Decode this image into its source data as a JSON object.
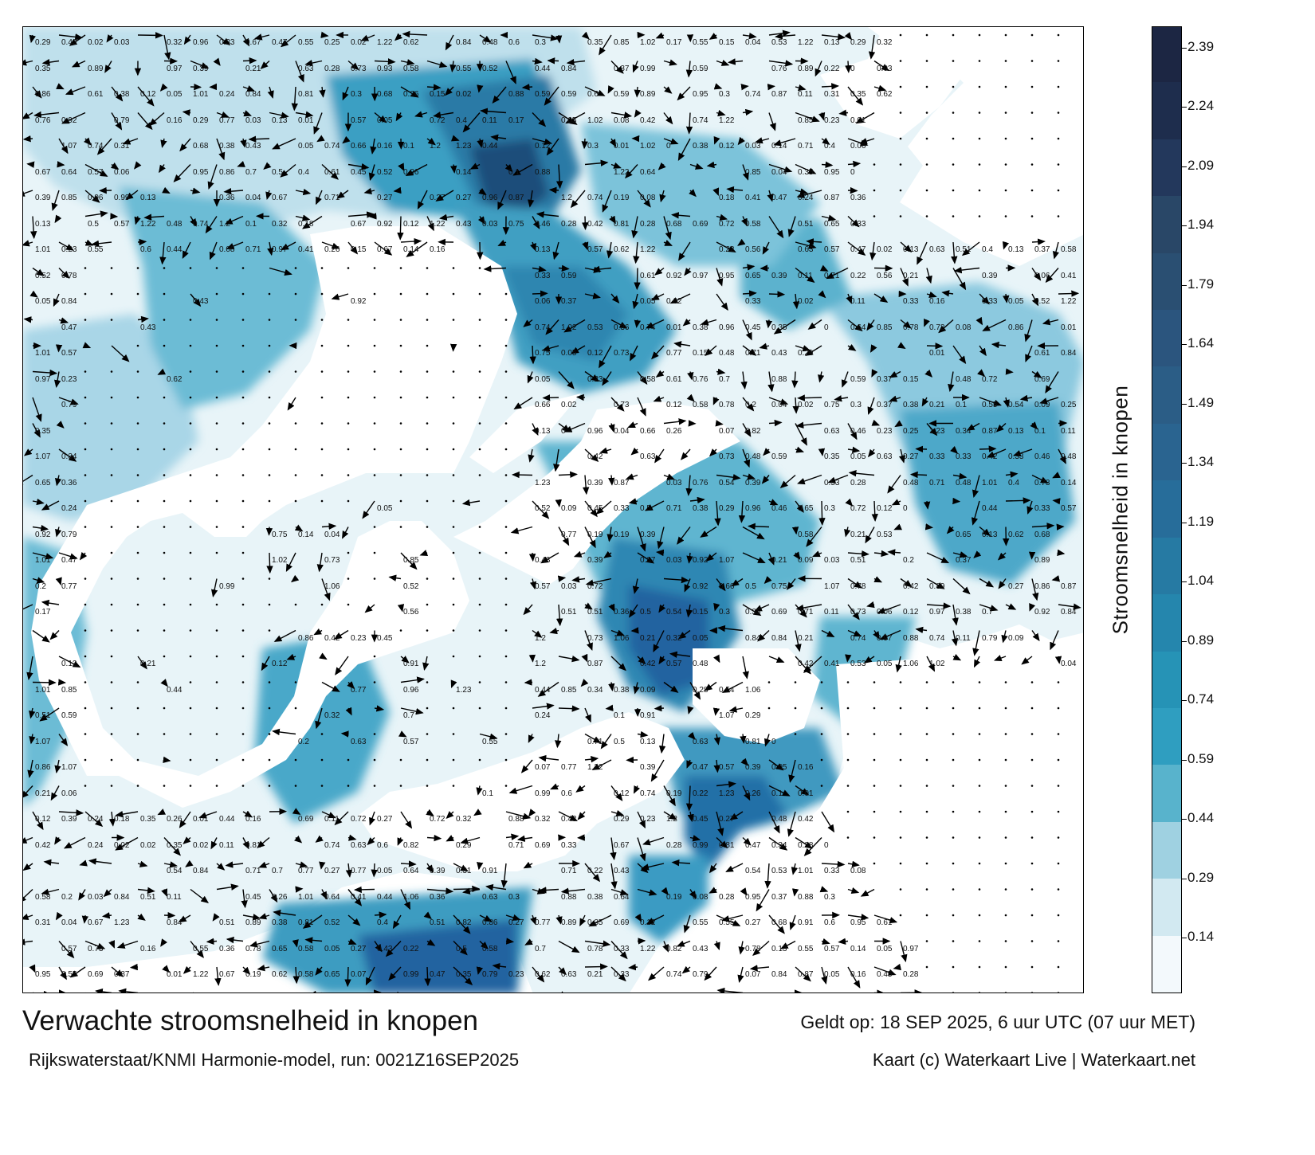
{
  "map": {
    "title": "Verwachte stroomsnelheid in knopen",
    "subtitle": "Rijkswaterstaat/KNMI Harmonie-model, run: 0021Z16SEP2025",
    "valid_time": "Geldt op: 18 SEP 2025, 6 uur UTC (07 uur MET)",
    "credit": "Kaart (c) Waterkaart Live | Waterkaart.net",
    "sample_values": [
      "0.15",
      "0.06",
      "0.19",
      "0.18",
      "0.16",
      "0.17",
      "0.12",
      "0.13",
      "0.24",
      "0.11",
      "0.14",
      "0.07",
      "0.05",
      "0.08",
      "0.12",
      "0.33",
      "0.28",
      "0.5",
      "0.36",
      "0.34",
      "0.39",
      "0.41",
      "0.45",
      "0.55",
      "0.77",
      "0.76",
      "1.2",
      "1.22",
      "1.23",
      "0.66",
      "0.74",
      "0.91",
      "0.92",
      "0.84",
      "0.73",
      "0.63",
      "0.81",
      "0.69",
      "0.65",
      "0.59",
      "0.58",
      "0.46",
      "0.43",
      "0.32",
      "0.33",
      "0.29",
      "0.26",
      "0.22",
      "0.09",
      "0.04",
      "0.03",
      "0.02",
      "0.01",
      "0",
      "1.01",
      "1.02",
      "0.93",
      "0.99",
      "0.87",
      "0.72",
      "0.6",
      "0.51",
      "0.47",
      "0.42",
      "0.38",
      "0.27",
      "0.23",
      "0.21",
      "0.2",
      "0.1",
      "0.25",
      "0.31",
      "0.35",
      "0.37",
      "0.44",
      "0.48",
      "0.53",
      "0.56",
      "0.62",
      "0.64",
      "0.68",
      "0.71",
      "0.75",
      "0.79",
      "0.82",
      "0.85",
      "0.95",
      "1.06",
      "1.07",
      "0.3",
      "0.4",
      "0.52",
      "0.54",
      "0.57",
      "0.61",
      "0.67",
      "0.7",
      "0.78",
      "0.86",
      "0.88",
      "0.89",
      "0.96",
      "0.97"
    ]
  },
  "colorbar": {
    "label": "Stroomsnelheid in knopen",
    "ticks": [
      "0.14",
      "0.29",
      "0.44",
      "0.59",
      "0.74",
      "0.89",
      "1.04",
      "1.19",
      "1.34",
      "1.49",
      "1.64",
      "1.79",
      "1.94",
      "2.09",
      "2.24",
      "2.39"
    ],
    "colors": [
      "#f3f9fc",
      "#d2e9f1",
      "#9fd1e1",
      "#58b3cc",
      "#2f9ec0",
      "#2693b6",
      "#2586ad",
      "#267aa3",
      "#276d9a",
      "#2a6490",
      "#2b5d86",
      "#2b557e",
      "#2a4f72",
      "#294767",
      "#23385c",
      "#1e2d4d",
      "#1c2643"
    ]
  }
}
